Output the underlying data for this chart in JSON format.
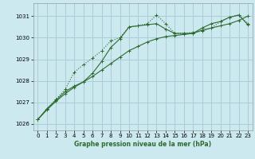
{
  "title": "Graphe pression niveau de la mer (hPa)",
  "background_color": "#cce9f0",
  "grid_color": "#aacdd8",
  "line_color": "#2d6a2d",
  "xlim": [
    -0.5,
    23.5
  ],
  "ylim": [
    1025.7,
    1031.6
  ],
  "yticks": [
    1026,
    1027,
    1028,
    1029,
    1030,
    1031
  ],
  "xticks": [
    0,
    1,
    2,
    3,
    4,
    5,
    6,
    7,
    8,
    9,
    10,
    11,
    12,
    13,
    14,
    15,
    16,
    17,
    18,
    19,
    20,
    21,
    22,
    23
  ],
  "series": [
    {
      "x": [
        0,
        1,
        2,
        3,
        4,
        5,
        6,
        7,
        8,
        9,
        10,
        11,
        12,
        13,
        14,
        15,
        16,
        17,
        18,
        19,
        20,
        21,
        22,
        23
      ],
      "y": [
        1026.2,
        1026.7,
        1027.1,
        1027.5,
        1027.75,
        1027.95,
        1028.35,
        1028.9,
        1029.55,
        1029.95,
        1030.5,
        1030.55,
        1030.6,
        1030.65,
        1030.4,
        1030.2,
        1030.2,
        1030.2,
        1030.45,
        1030.65,
        1030.75,
        1030.95,
        1031.05,
        1030.6
      ],
      "style": "solid",
      "marker": "+"
    },
    {
      "x": [
        0,
        1,
        2,
        3,
        4,
        5,
        6,
        7,
        8,
        9,
        10,
        11,
        12,
        13,
        14,
        15,
        16,
        17,
        18,
        19,
        20,
        21,
        22,
        23
      ],
      "y": [
        1026.2,
        1026.65,
        1027.05,
        1027.4,
        1027.7,
        1027.95,
        1028.2,
        1028.5,
        1028.8,
        1029.1,
        1029.4,
        1029.6,
        1029.8,
        1029.95,
        1030.05,
        1030.1,
        1030.15,
        1030.2,
        1030.35,
        1030.45,
        1030.55,
        1030.65,
        1030.8,
        1031.0
      ],
      "style": "solid",
      "marker": "+"
    },
    {
      "x": [
        0,
        1,
        2,
        3,
        4,
        5,
        6,
        7,
        8,
        9,
        10,
        11,
        12,
        13,
        14,
        15,
        16,
        17,
        18,
        19,
        20,
        21,
        22,
        23
      ],
      "y": [
        1026.2,
        1026.7,
        1027.15,
        1027.6,
        1028.4,
        1028.75,
        1029.05,
        1029.4,
        1029.85,
        1030.0,
        1030.5,
        1030.55,
        1030.65,
        1031.05,
        1030.65,
        1030.2,
        1030.2,
        1030.25,
        1030.3,
        1030.45,
        1030.75,
        1030.95,
        1031.05,
        1030.65
      ],
      "style": "dotted",
      "marker": "+"
    }
  ]
}
